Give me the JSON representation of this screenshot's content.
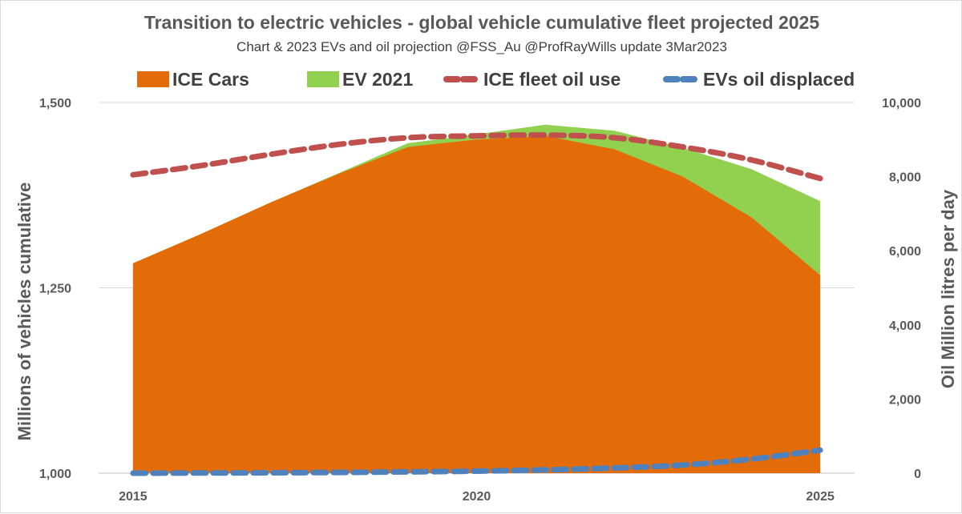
{
  "chart_data": {
    "type": "area",
    "title": "Transition to electric vehicles - global vehicle cumulative fleet projected 2025",
    "subtitle": "Chart & 2023 EVs and oil projection @FSS_Au @ProfRayWills  update 3Mar2023",
    "ylabel": "Millions of vehicles cumulative",
    "y2label": "Oil Million litres per day",
    "xlabel": "",
    "x": [
      2015,
      2016,
      2017,
      2018,
      2019,
      2020,
      2021,
      2022,
      2023,
      2024,
      2025
    ],
    "xlim": [
      2014.5,
      2025.5
    ],
    "x_ticks": [
      "2015",
      "2020",
      "2025"
    ],
    "ylim": [
      1000,
      1500
    ],
    "y_ticks": [
      "1,000",
      "1,250",
      "1,500"
    ],
    "y2lim": [
      0,
      10000
    ],
    "y2_ticks": [
      "0",
      "2,000",
      "4,000",
      "6,000",
      "8,000",
      "10,000"
    ],
    "grid": "horizontal",
    "legend_position": "top",
    "series": [
      {
        "name": "ICE Cars",
        "kind": "area",
        "axis": "left",
        "color": "#e36c09",
        "values": [
          1283,
          1323,
          1365,
          1404,
          1440,
          1450,
          1455,
          1437,
          1400,
          1345,
          1267
        ]
      },
      {
        "name": "EV 2021",
        "kind": "area",
        "axis": "left",
        "color": "#92d050",
        "values": [
          1283,
          1323,
          1365,
          1405,
          1445,
          1457,
          1470,
          1462,
          1439,
          1410,
          1367
        ]
      },
      {
        "name": "ICE fleet oil use",
        "kind": "dashed-line",
        "axis": "right",
        "color": "#c0504d",
        "values": [
          8050,
          8300,
          8600,
          8870,
          9050,
          9100,
          9120,
          9050,
          8800,
          8450,
          7950
        ]
      },
      {
        "name": "EVs oil displaced",
        "kind": "dashed-line",
        "axis": "right",
        "color": "#4f81bd",
        "values": [
          0,
          5,
          10,
          20,
          35,
          55,
          90,
          140,
          220,
          380,
          620
        ]
      }
    ]
  }
}
